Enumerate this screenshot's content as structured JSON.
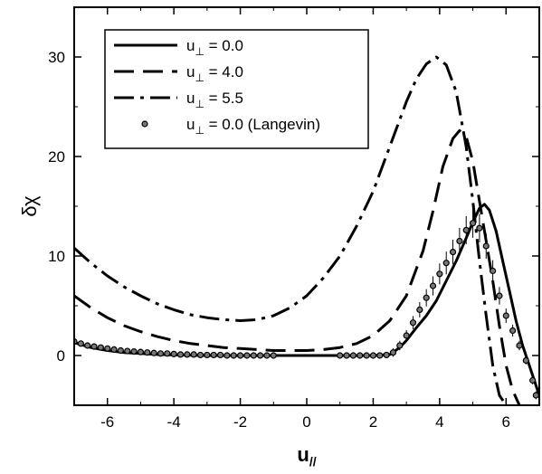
{
  "chart_data": {
    "type": "line",
    "xlabel": "u//",
    "xlabel_main": "u",
    "xlabel_sub": "//",
    "ylabel": "δχ",
    "xlim": [
      -7,
      7
    ],
    "ylim": [
      -5,
      35
    ],
    "x_ticks": [
      -6,
      -4,
      -2,
      0,
      2,
      4,
      6
    ],
    "y_ticks": [
      0,
      10,
      20,
      30
    ],
    "x_tick_labels": [
      "-6",
      "-4",
      "-2",
      "0",
      "2",
      "4",
      "6"
    ],
    "y_tick_labels": [
      "0",
      "10",
      "20",
      "30"
    ],
    "grid": false,
    "legend_position": "top-left",
    "legend": [
      {
        "base": "u",
        "sub": "⊥",
        "rest": " = 0.0",
        "style": "solid"
      },
      {
        "base": "u",
        "sub": "⊥",
        "rest": " = 4.0",
        "style": "dashed"
      },
      {
        "base": "u",
        "sub": "⊥",
        "rest": " = 5.5",
        "style": "dashdot"
      },
      {
        "base": "u",
        "sub": "⊥",
        "rest": " = 0.0 (Langevin)",
        "style": "markers"
      }
    ],
    "series": [
      {
        "name": "u⊥ = 0.0",
        "style": "solid",
        "x": [
          -7.0,
          -6.5,
          -6.0,
          -5.5,
          -5.0,
          -4.5,
          -4.0,
          -3.0,
          -2.0,
          -1.0,
          0.0,
          1.0,
          2.0,
          2.5,
          2.8,
          3.0,
          3.3,
          3.6,
          3.9,
          4.2,
          4.5,
          4.8,
          5.0,
          5.2,
          5.35,
          5.5,
          5.7,
          5.9,
          6.1,
          6.3,
          6.5,
          6.7,
          6.9,
          7.0
        ],
        "y": [
          1.3,
          0.8,
          0.5,
          0.3,
          0.2,
          0.1,
          0.05,
          0.0,
          0.0,
          0.0,
          0.0,
          0.0,
          0.0,
          0.1,
          0.8,
          1.5,
          2.8,
          4.0,
          5.5,
          7.5,
          9.5,
          11.8,
          13.4,
          14.8,
          15.2,
          14.6,
          12.5,
          9.5,
          6.5,
          3.5,
          1.0,
          -1.0,
          -3.0,
          -4.0
        ]
      },
      {
        "name": "u⊥ = 4.0",
        "style": "dashed",
        "x": [
          -7.0,
          -6.5,
          -6.0,
          -5.5,
          -5.0,
          -4.5,
          -4.0,
          -3.5,
          -3.0,
          -2.5,
          -2.0,
          -1.5,
          -1.0,
          -0.5,
          0.0,
          0.5,
          1.0,
          1.5,
          2.0,
          2.5,
          3.0,
          3.5,
          3.8,
          4.1,
          4.4,
          4.6,
          4.8,
          5.0,
          5.2,
          5.4,
          5.6,
          5.8,
          6.0,
          6.2,
          6.4
        ],
        "y": [
          6.0,
          4.8,
          3.8,
          3.0,
          2.4,
          1.9,
          1.5,
          1.2,
          1.0,
          0.8,
          0.7,
          0.6,
          0.5,
          0.5,
          0.5,
          0.6,
          0.8,
          1.2,
          2.0,
          3.5,
          6.0,
          10.5,
          14.5,
          19.0,
          21.8,
          22.6,
          22.0,
          19.5,
          15.5,
          11.5,
          7.5,
          3.0,
          -1.0,
          -3.5,
          -5.0
        ]
      },
      {
        "name": "u⊥ = 5.5",
        "style": "dashdot",
        "x": [
          -7.0,
          -6.5,
          -6.0,
          -5.5,
          -5.0,
          -4.5,
          -4.0,
          -3.5,
          -3.0,
          -2.5,
          -2.0,
          -1.5,
          -1.0,
          -0.5,
          0.0,
          0.5,
          1.0,
          1.5,
          2.0,
          2.5,
          3.0,
          3.3,
          3.6,
          3.9,
          4.2,
          4.5,
          4.8,
          5.0,
          5.2,
          5.4,
          5.6,
          5.8,
          6.0
        ],
        "y": [
          10.8,
          9.3,
          8.0,
          6.9,
          6.0,
          5.2,
          4.6,
          4.1,
          3.8,
          3.6,
          3.5,
          3.6,
          4.0,
          4.8,
          6.0,
          7.8,
          10.0,
          13.0,
          16.5,
          21.0,
          25.5,
          27.8,
          29.3,
          30.0,
          29.2,
          26.5,
          21.0,
          15.5,
          9.5,
          4.0,
          -1.0,
          -4.0,
          -5.0
        ]
      },
      {
        "name": "u⊥ = 0.0 (Langevin)",
        "style": "markers",
        "x": [
          -7.0,
          -6.8,
          -6.6,
          -6.4,
          -6.2,
          -6.0,
          -5.8,
          -5.6,
          -5.4,
          -5.2,
          -5.0,
          -4.8,
          -4.6,
          -4.4,
          -4.2,
          -4.0,
          -3.8,
          -3.6,
          -3.4,
          -3.2,
          -3.0,
          -2.8,
          -2.6,
          -2.4,
          -2.2,
          -2.0,
          -1.8,
          -1.6,
          -1.4,
          -1.2,
          -1.0,
          1.0,
          1.2,
          1.4,
          1.6,
          1.8,
          2.0,
          2.2,
          2.4,
          2.6,
          2.8,
          3.0,
          3.2,
          3.4,
          3.6,
          3.8,
          4.0,
          4.2,
          4.4,
          4.6,
          4.8,
          5.0,
          5.2,
          5.4,
          5.6,
          5.8,
          6.0,
          6.2,
          6.4,
          6.6,
          6.8,
          6.9
        ],
        "y": [
          1.4,
          1.2,
          1.0,
          0.9,
          0.8,
          0.7,
          0.6,
          0.5,
          0.45,
          0.4,
          0.35,
          0.3,
          0.25,
          0.2,
          0.2,
          0.15,
          0.1,
          0.1,
          0.1,
          0.05,
          0.05,
          0.05,
          0.05,
          0.0,
          0.0,
          0.0,
          0.0,
          0.0,
          0.0,
          0.0,
          0.0,
          0.0,
          0.0,
          0.0,
          0.0,
          0.0,
          0.0,
          0.0,
          0.05,
          0.3,
          1.0,
          2.0,
          3.3,
          4.6,
          5.8,
          7.0,
          8.2,
          9.3,
          10.4,
          11.5,
          12.6,
          13.3,
          12.8,
          11.0,
          8.5,
          6.0,
          4.0,
          2.5,
          1.0,
          -0.5,
          -2.5,
          -4.0
        ]
      }
    ]
  }
}
